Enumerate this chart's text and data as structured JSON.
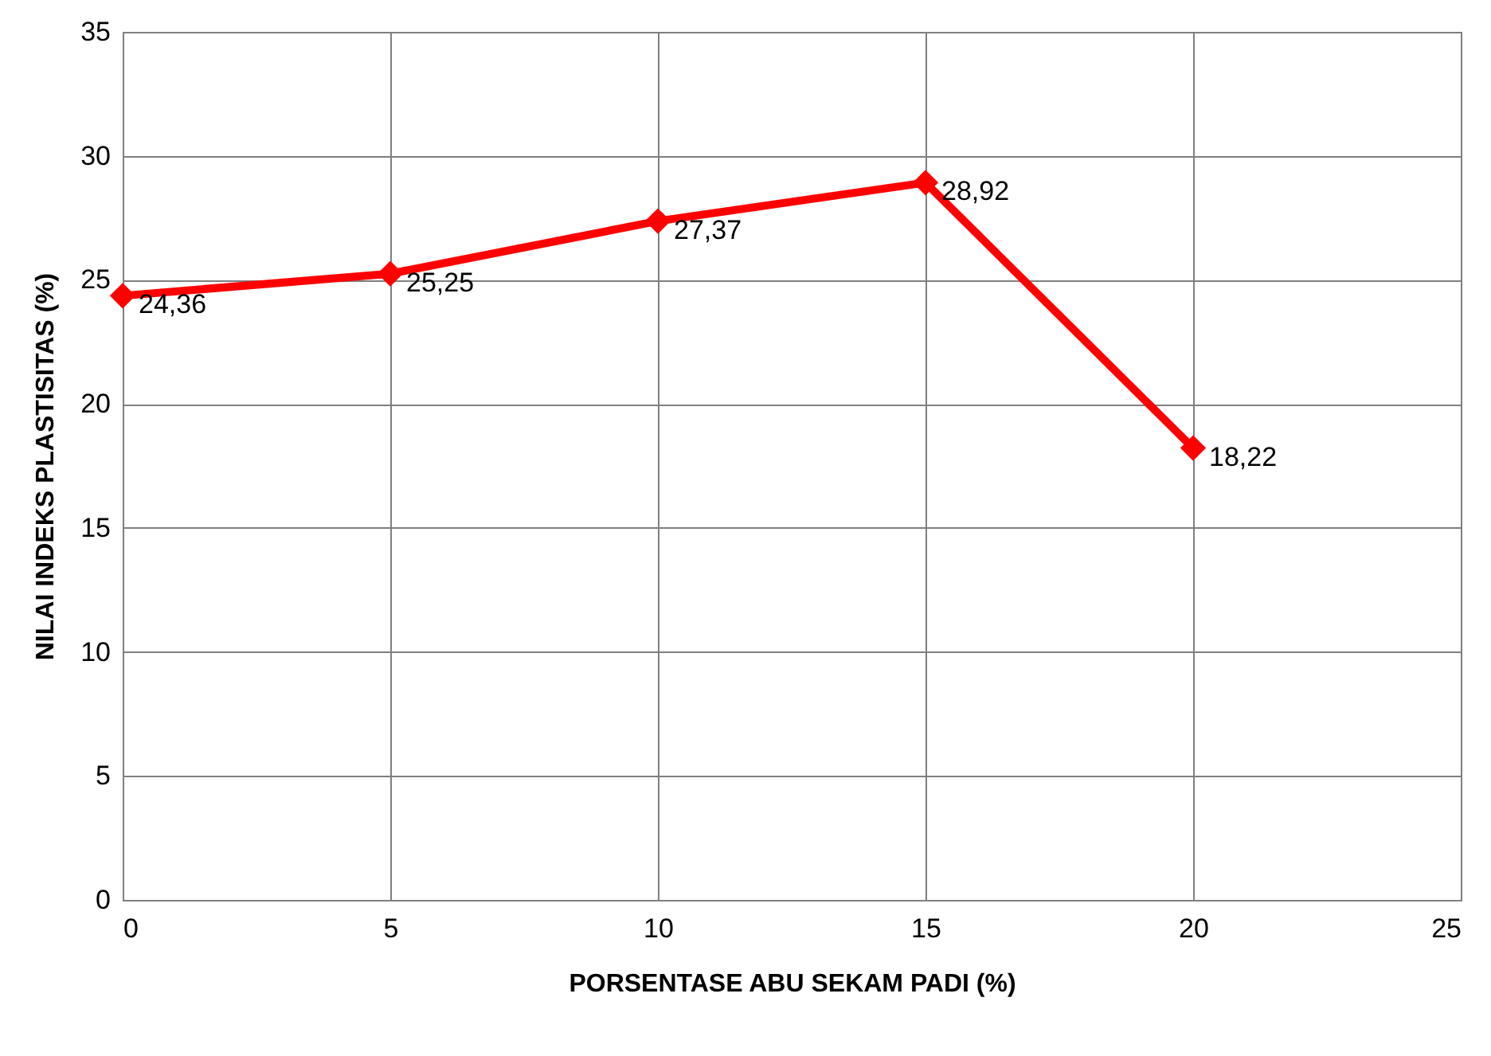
{
  "chart_data": {
    "type": "line",
    "xlabel": "PORSENTASE  ABU SEKAM PADI (%)",
    "ylabel": "NILAI INDEKS PLASTISITAS  (%)",
    "x": [
      0,
      5,
      10,
      15,
      20
    ],
    "series": [
      {
        "color": "#ff0000",
        "values": [
          24.36,
          25.25,
          27.37,
          28.92,
          18.22
        ],
        "value_labels": [
          "24,36",
          "25,25",
          "27,37",
          "28,92",
          "18,22"
        ]
      }
    ],
    "xlim": [
      0,
      25
    ],
    "xticks": [
      0,
      5,
      10,
      15,
      20,
      25
    ],
    "ylim": [
      0,
      35
    ],
    "yticks": [
      0,
      5,
      10,
      15,
      20,
      25,
      30,
      35
    ],
    "grid": true,
    "marker": "diamond",
    "line_style": "solid"
  }
}
